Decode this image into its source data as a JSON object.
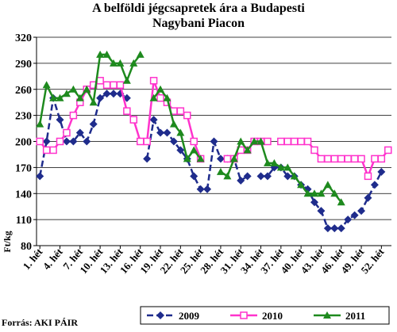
{
  "title_line1": "A belföldi jégcsapretek ára a Budapesti",
  "title_line2": "Nagybani Piacon",
  "source": "Forrás: AKI PÁIR",
  "chart_data": {
    "type": "line",
    "title": "A belföldi jégcsapretek ára a Budapesti Nagybani Piacon",
    "ylabel": "Ft/kg",
    "xlabel": "",
    "ylim": [
      80,
      320
    ],
    "yticks": [
      80,
      110,
      140,
      170,
      200,
      230,
      260,
      290,
      320
    ],
    "weeks": [
      1,
      2,
      3,
      4,
      5,
      6,
      7,
      8,
      9,
      10,
      11,
      12,
      13,
      14,
      15,
      16,
      17,
      18,
      19,
      20,
      21,
      22,
      23,
      24,
      25,
      26,
      27,
      28,
      29,
      30,
      31,
      32,
      33,
      34,
      35,
      36,
      37,
      38,
      39,
      40,
      41,
      42,
      43,
      44,
      45,
      46,
      47,
      48,
      49,
      50,
      51,
      52,
      53
    ],
    "xtick_labels": [
      "1. hét",
      "4. hét",
      "7. hét",
      "10. hét",
      "13. hét",
      "16. hét",
      "19. hét",
      "22. hét",
      "25. hét",
      "28. hét",
      "31. hét",
      "34. hét",
      "37. hét",
      "40. hét",
      "43. hét",
      "46. hét",
      "49. hét",
      "52. hét"
    ],
    "xtick_weeks": [
      1,
      4,
      7,
      10,
      13,
      16,
      19,
      22,
      25,
      28,
      31,
      34,
      37,
      40,
      43,
      46,
      49,
      52
    ],
    "grid": true,
    "legend_position": "bottom",
    "series": [
      {
        "name": "2009",
        "color": "#1f2c8c",
        "marker": "diamond",
        "dash": "8,4",
        "values": [
          160,
          200,
          250,
          225,
          200,
          200,
          210,
          200,
          220,
          250,
          255,
          255,
          255,
          250,
          null,
          null,
          180,
          225,
          210,
          210,
          200,
          190,
          180,
          160,
          145,
          145,
          200,
          180,
          180,
          180,
          155,
          160,
          null,
          160,
          160,
          170,
          170,
          160,
          160,
          150,
          145,
          130,
          120,
          100,
          100,
          100,
          110,
          115,
          120,
          135,
          150,
          165,
          null
        ]
      },
      {
        "name": "2010",
        "color": "#ff33cc",
        "marker": "square",
        "dash": "",
        "values": [
          200,
          190,
          190,
          200,
          210,
          230,
          245,
          260,
          265,
          270,
          265,
          265,
          265,
          235,
          225,
          200,
          200,
          270,
          250,
          245,
          235,
          235,
          230,
          200,
          180,
          null,
          null,
          null,
          180,
          180,
          190,
          190,
          200,
          200,
          200,
          null,
          200,
          200,
          200,
          200,
          200,
          190,
          180,
          180,
          180,
          180,
          180,
          180,
          180,
          160,
          180,
          180,
          190
        ]
      },
      {
        "name": "2011",
        "color": "#1e8a1e",
        "marker": "triangle",
        "dash": "",
        "values": [
          220,
          265,
          250,
          250,
          255,
          260,
          250,
          260,
          245,
          300,
          300,
          290,
          290,
          270,
          290,
          300,
          null,
          250,
          260,
          250,
          220,
          210,
          180,
          190,
          180,
          null,
          null,
          165,
          160,
          180,
          200,
          190,
          200,
          200,
          175,
          175,
          170,
          170,
          160,
          150,
          140,
          140,
          140,
          150,
          140,
          130,
          null,
          null,
          null,
          null,
          null,
          null,
          null
        ]
      }
    ]
  }
}
